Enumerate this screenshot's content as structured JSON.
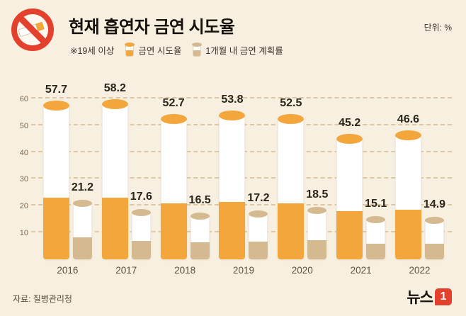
{
  "header": {
    "title": "현재 흡연자 금연 시도율",
    "unit": "단위: %",
    "note": "※19세 이상"
  },
  "legend": [
    {
      "label": "금연 시도율",
      "color": "#f2a63c"
    },
    {
      "label": "1개월 내 금연 계획률",
      "color": "#d5b990"
    }
  ],
  "chart_data": {
    "type": "bar",
    "categories": [
      "2016",
      "2017",
      "2018",
      "2019",
      "2020",
      "2021",
      "2022"
    ],
    "series": [
      {
        "name": "금연 시도율",
        "values": [
          57.7,
          58.2,
          52.7,
          53.8,
          52.5,
          45.2,
          46.6
        ]
      },
      {
        "name": "1개월 내 금연 계획률",
        "values": [
          21.2,
          17.6,
          16.5,
          17.2,
          18.5,
          15.1,
          14.9
        ]
      }
    ],
    "ylim": [
      0,
      65
    ],
    "yticks": [
      10,
      20,
      30,
      40,
      50,
      60
    ],
    "grid": "dashed-horizontal",
    "legend_position": "top",
    "xlabel": "",
    "ylabel": ""
  },
  "footer": {
    "source": "자료: 질병관리청",
    "logo_text": "뉴스",
    "logo_accent": "1"
  },
  "colors": {
    "background": "#f7efdf",
    "accent_red": "#e4402e",
    "bar_body": "#ffffff",
    "text_dark": "#17110c"
  }
}
